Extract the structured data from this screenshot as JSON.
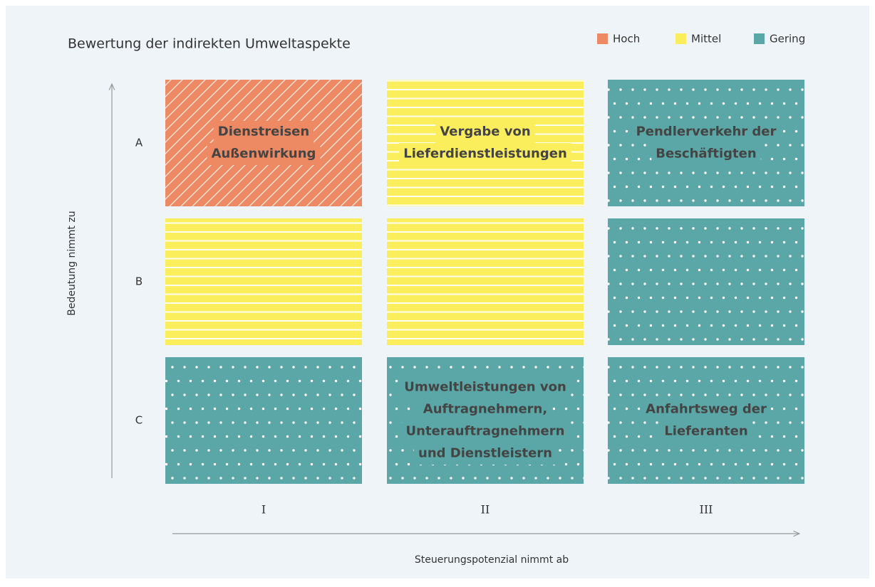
{
  "title": "Bewertung der indirekten Umweltaspekte",
  "legend": [
    {
      "label": "Hoch",
      "color": "#ee8a63"
    },
    {
      "label": "Mittel",
      "color": "#fbee5c"
    },
    {
      "label": "Gering",
      "color": "#5ba6a7"
    }
  ],
  "y_axis_label": "Bedeutung nimmt zu",
  "x_axis_label": "Steuerungspotenzial nimmt ab",
  "rows": [
    "A",
    "B",
    "C"
  ],
  "columns": [
    "I",
    "II",
    "III"
  ],
  "cells": [
    [
      {
        "level": 0,
        "lines": [
          "Dienstreisen",
          "Außenwirkung"
        ]
      },
      {
        "level": 1,
        "lines": [
          "Vergabe von",
          "Lieferdienstleistungen"
        ]
      },
      {
        "level": 2,
        "lines": [
          "Pendlerverkehr der",
          "Beschäftigten"
        ]
      }
    ],
    [
      {
        "level": 1
      },
      {
        "level": 1
      },
      {
        "level": 2
      }
    ],
    [
      {
        "level": 2
      },
      {
        "level": 2,
        "lines": [
          "Umweltleistungen von",
          "Auftragnehmern,",
          "Unterauftragnehmern",
          "und Dienstleistern"
        ]
      },
      {
        "level": 2,
        "lines": [
          "Anfahrtsweg der",
          "Lieferanten"
        ]
      }
    ]
  ]
}
